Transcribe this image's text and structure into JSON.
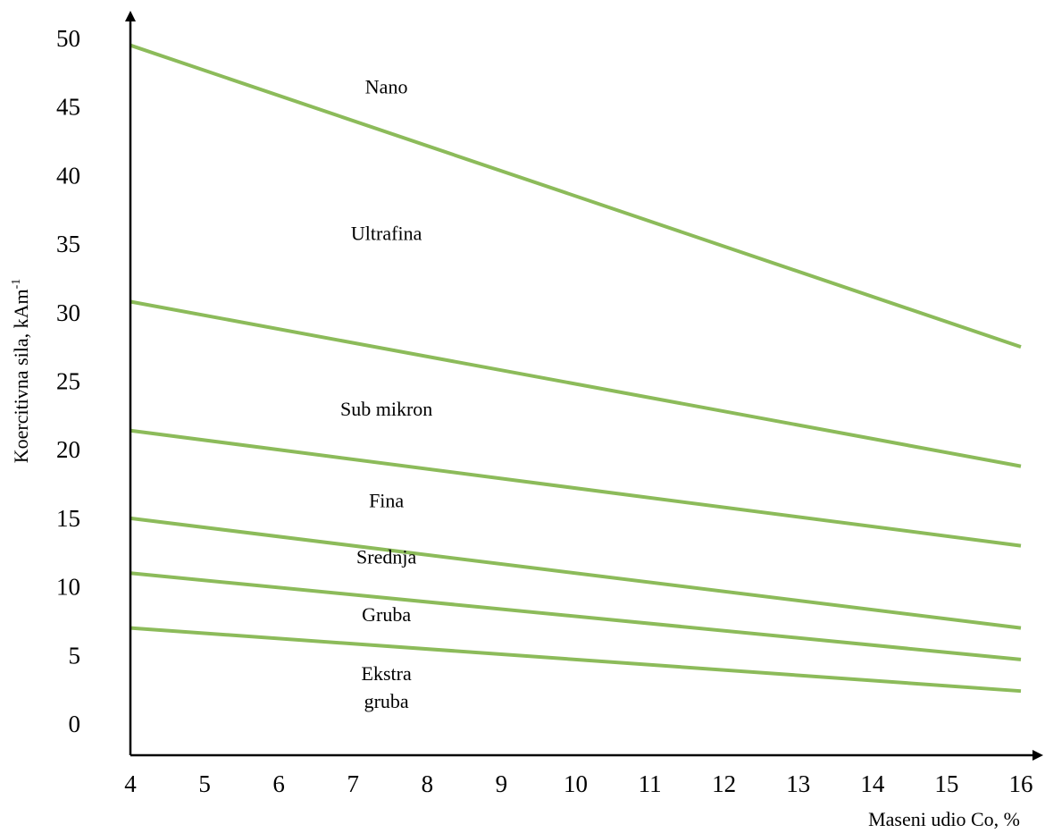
{
  "chart_data": {
    "type": "line",
    "xlabel": "Maseni udio Co, %",
    "ylabel": "Koercitivna sila, kAm",
    "ylabel_superscript": "-1",
    "xlim": [
      4,
      16
    ],
    "ylim": [
      0,
      50
    ],
    "x_ticks": [
      "4",
      "5",
      "6",
      "7",
      "8",
      "9",
      "10",
      "11",
      "12",
      "13",
      "14",
      "15",
      "16"
    ],
    "y_ticks": [
      "0",
      "5",
      "10",
      "15",
      "20",
      "25",
      "30",
      "35",
      "40",
      "45",
      "50"
    ],
    "line_color": "#8cbb5a",
    "grid": false,
    "series": [
      {
        "x": [
          4,
          16
        ],
        "values": [
          49.5,
          27.5
        ]
      },
      {
        "x": [
          4,
          16
        ],
        "values": [
          30.8,
          18.8
        ]
      },
      {
        "x": [
          4,
          16
        ],
        "values": [
          21.4,
          13.0
        ]
      },
      {
        "x": [
          4,
          16
        ],
        "values": [
          15.0,
          7.0
        ]
      },
      {
        "x": [
          4,
          16
        ],
        "values": [
          11.0,
          4.7
        ]
      },
      {
        "x": [
          4,
          16
        ],
        "values": [
          7.0,
          2.4
        ]
      }
    ],
    "region_labels": [
      {
        "lines": [
          "Nano"
        ],
        "x": 7.45,
        "y": 46.0
      },
      {
        "lines": [
          "Ultrafina"
        ],
        "x": 7.45,
        "y": 35.3
      },
      {
        "lines": [
          "Sub mikron"
        ],
        "x": 7.45,
        "y": 22.5
      },
      {
        "lines": [
          "Fina"
        ],
        "x": 7.45,
        "y": 15.8
      },
      {
        "lines": [
          "Srednja"
        ],
        "x": 7.45,
        "y": 11.7
      },
      {
        "lines": [
          "Gruba"
        ],
        "x": 7.45,
        "y": 7.5
      },
      {
        "lines": [
          "Ekstra",
          "gruba"
        ],
        "x": 7.45,
        "y": 3.2
      }
    ]
  }
}
